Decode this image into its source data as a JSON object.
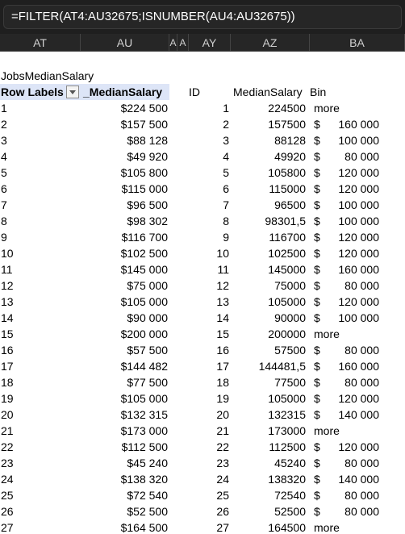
{
  "formula_bar": {
    "text": "=FILTER(AT4:AU32675;ISNUMBER(AU4:AU32675))"
  },
  "columns": [
    "AT",
    "AU",
    "A",
    "A",
    "AY",
    "AZ",
    "BA"
  ],
  "pivot": {
    "title": "JobsMedianSalary",
    "row_labels_header": "Row Labels",
    "value_header": "_MedianSalary"
  },
  "result_headers": {
    "id": "ID",
    "median": "MedianSalary",
    "bin": "Bin"
  },
  "rows": [
    {
      "label": "1",
      "pivot_value": "$224 500",
      "id": "1",
      "median": "224500",
      "bin_cur": "",
      "bin": "more"
    },
    {
      "label": "2",
      "pivot_value": "$157 500",
      "id": "2",
      "median": "157500",
      "bin_cur": "$",
      "bin": "160 000"
    },
    {
      "label": "3",
      "pivot_value": "$88 128",
      "id": "3",
      "median": "88128",
      "bin_cur": "$",
      "bin": "100 000"
    },
    {
      "label": "4",
      "pivot_value": "$49 920",
      "id": "4",
      "median": "49920",
      "bin_cur": "$",
      "bin": "80 000"
    },
    {
      "label": "5",
      "pivot_value": "$105 800",
      "id": "5",
      "median": "105800",
      "bin_cur": "$",
      "bin": "120 000"
    },
    {
      "label": "6",
      "pivot_value": "$115 000",
      "id": "6",
      "median": "115000",
      "bin_cur": "$",
      "bin": "120 000"
    },
    {
      "label": "7",
      "pivot_value": "$96 500",
      "id": "7",
      "median": "96500",
      "bin_cur": "$",
      "bin": "100 000"
    },
    {
      "label": "8",
      "pivot_value": "$98 302",
      "id": "8",
      "median": "98301,5",
      "bin_cur": "$",
      "bin": "100 000"
    },
    {
      "label": "9",
      "pivot_value": "$116 700",
      "id": "9",
      "median": "116700",
      "bin_cur": "$",
      "bin": "120 000"
    },
    {
      "label": "10",
      "pivot_value": "$102 500",
      "id": "10",
      "median": "102500",
      "bin_cur": "$",
      "bin": "120 000"
    },
    {
      "label": "11",
      "pivot_value": "$145 000",
      "id": "11",
      "median": "145000",
      "bin_cur": "$",
      "bin": "160 000"
    },
    {
      "label": "12",
      "pivot_value": "$75 000",
      "id": "12",
      "median": "75000",
      "bin_cur": "$",
      "bin": "80 000"
    },
    {
      "label": "13",
      "pivot_value": "$105 000",
      "id": "13",
      "median": "105000",
      "bin_cur": "$",
      "bin": "120 000"
    },
    {
      "label": "14",
      "pivot_value": "$90 000",
      "id": "14",
      "median": "90000",
      "bin_cur": "$",
      "bin": "100 000"
    },
    {
      "label": "15",
      "pivot_value": "$200 000",
      "id": "15",
      "median": "200000",
      "bin_cur": "",
      "bin": "more"
    },
    {
      "label": "16",
      "pivot_value": "$57 500",
      "id": "16",
      "median": "57500",
      "bin_cur": "$",
      "bin": "80 000"
    },
    {
      "label": "17",
      "pivot_value": "$144 482",
      "id": "17",
      "median": "144481,5",
      "bin_cur": "$",
      "bin": "160 000"
    },
    {
      "label": "18",
      "pivot_value": "$77 500",
      "id": "18",
      "median": "77500",
      "bin_cur": "$",
      "bin": "80 000"
    },
    {
      "label": "19",
      "pivot_value": "$105 000",
      "id": "19",
      "median": "105000",
      "bin_cur": "$",
      "bin": "120 000"
    },
    {
      "label": "20",
      "pivot_value": "$132 315",
      "id": "20",
      "median": "132315",
      "bin_cur": "$",
      "bin": "140 000"
    },
    {
      "label": "21",
      "pivot_value": "$173 000",
      "id": "21",
      "median": "173000",
      "bin_cur": "",
      "bin": "more"
    },
    {
      "label": "22",
      "pivot_value": "$112 500",
      "id": "22",
      "median": "112500",
      "bin_cur": "$",
      "bin": "120 000"
    },
    {
      "label": "23",
      "pivot_value": "$45 240",
      "id": "23",
      "median": "45240",
      "bin_cur": "$",
      "bin": "80 000"
    },
    {
      "label": "24",
      "pivot_value": "$138 320",
      "id": "24",
      "median": "138320",
      "bin_cur": "$",
      "bin": "140 000"
    },
    {
      "label": "25",
      "pivot_value": "$72 540",
      "id": "25",
      "median": "72540",
      "bin_cur": "$",
      "bin": "80 000"
    },
    {
      "label": "26",
      "pivot_value": "$52 500",
      "id": "26",
      "median": "52500",
      "bin_cur": "$",
      "bin": "80 000"
    },
    {
      "label": "27",
      "pivot_value": "$164 500",
      "id": "27",
      "median": "164500",
      "bin_cur": "",
      "bin": "more"
    }
  ],
  "colors": {
    "formula_bg": "#1f1f1f",
    "header_bg": "#262626",
    "pivot_header_fill": "#dde5f7"
  }
}
